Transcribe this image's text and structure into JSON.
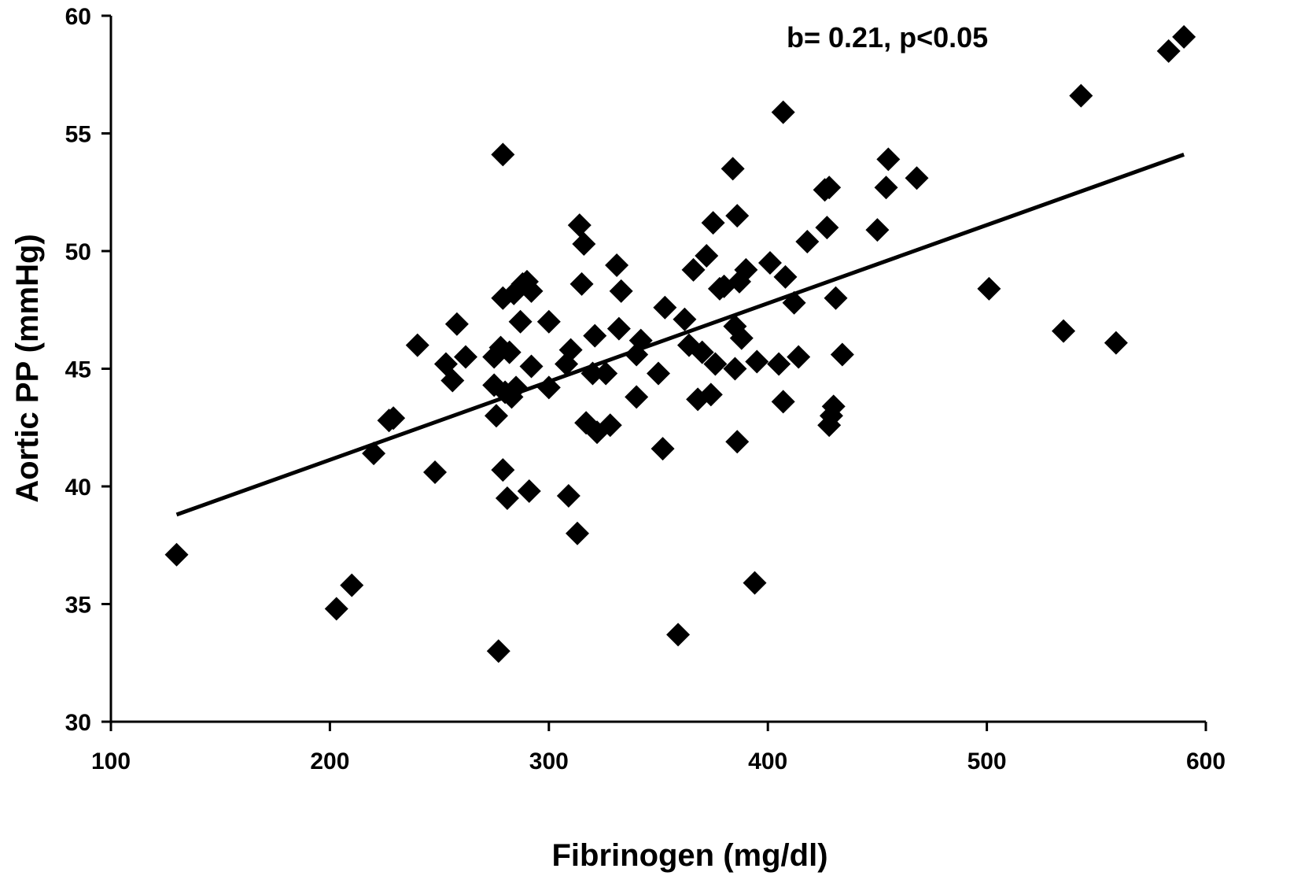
{
  "chart_data": {
    "type": "scatter",
    "title": "",
    "xlabel": "Fibrinogen (mg/dl)",
    "ylabel": "Aortic PP (mmHg)",
    "xlim": [
      100,
      600
    ],
    "ylim": [
      30,
      60
    ],
    "xticks": [
      "100",
      "200",
      "300",
      "400",
      "500",
      "600"
    ],
    "yticks": [
      "30",
      "35",
      "40",
      "45",
      "50",
      "55",
      "60"
    ],
    "annotation": "b= 0.21, p<0.05",
    "marker": "diamond",
    "marker_color": "#000000",
    "grid": false,
    "legend": "none",
    "points": [
      [
        130,
        37.1
      ],
      [
        203,
        34.8
      ],
      [
        210,
        35.8
      ],
      [
        220,
        41.4
      ],
      [
        227,
        42.8
      ],
      [
        229,
        42.9
      ],
      [
        240,
        46.0
      ],
      [
        248,
        40.6
      ],
      [
        253,
        45.2
      ],
      [
        256,
        44.5
      ],
      [
        258,
        46.9
      ],
      [
        262,
        45.5
      ],
      [
        275,
        45.5
      ],
      [
        275,
        44.3
      ],
      [
        276,
        43.0
      ],
      [
        277,
        33.0
      ],
      [
        278,
        45.9
      ],
      [
        279,
        54.1
      ],
      [
        279,
        48.0
      ],
      [
        279,
        40.7
      ],
      [
        280,
        44.0
      ],
      [
        281,
        39.5
      ],
      [
        282,
        45.7
      ],
      [
        283,
        43.8
      ],
      [
        284,
        48.2
      ],
      [
        285,
        44.2
      ],
      [
        287,
        47.0
      ],
      [
        288,
        48.6
      ],
      [
        290,
        48.7
      ],
      [
        291,
        39.8
      ],
      [
        292,
        48.3
      ],
      [
        292,
        45.1
      ],
      [
        300,
        47.0
      ],
      [
        300,
        44.2
      ],
      [
        308,
        45.2
      ],
      [
        309,
        39.6
      ],
      [
        310,
        45.8
      ],
      [
        313,
        38.0
      ],
      [
        314,
        51.1
      ],
      [
        315,
        48.6
      ],
      [
        316,
        50.3
      ],
      [
        317,
        42.7
      ],
      [
        320,
        44.8
      ],
      [
        321,
        46.4
      ],
      [
        322,
        42.3
      ],
      [
        326,
        44.8
      ],
      [
        328,
        42.6
      ],
      [
        331,
        49.4
      ],
      [
        332,
        46.7
      ],
      [
        333,
        48.3
      ],
      [
        340,
        45.6
      ],
      [
        340,
        43.8
      ],
      [
        342,
        46.2
      ],
      [
        350,
        44.8
      ],
      [
        352,
        41.6
      ],
      [
        353,
        47.6
      ],
      [
        359,
        33.7
      ],
      [
        362,
        47.1
      ],
      [
        364,
        46.0
      ],
      [
        366,
        49.2
      ],
      [
        368,
        43.7
      ],
      [
        370,
        45.7
      ],
      [
        372,
        49.8
      ],
      [
        374,
        43.9
      ],
      [
        375,
        51.2
      ],
      [
        376,
        45.2
      ],
      [
        378,
        48.4
      ],
      [
        380,
        48.5
      ],
      [
        384,
        53.5
      ],
      [
        385,
        46.8
      ],
      [
        385,
        45.0
      ],
      [
        386,
        51.5
      ],
      [
        386,
        41.9
      ],
      [
        387,
        48.7
      ],
      [
        388,
        46.3
      ],
      [
        390,
        49.2
      ],
      [
        394,
        35.9
      ],
      [
        395,
        45.3
      ],
      [
        401,
        49.5
      ],
      [
        405,
        45.2
      ],
      [
        407,
        55.9
      ],
      [
        407,
        43.6
      ],
      [
        408,
        48.9
      ],
      [
        412,
        47.8
      ],
      [
        414,
        45.5
      ],
      [
        418,
        50.4
      ],
      [
        426,
        52.6
      ],
      [
        427,
        51.0
      ],
      [
        428,
        52.7
      ],
      [
        428,
        42.6
      ],
      [
        429,
        43.0
      ],
      [
        430,
        43.4
      ],
      [
        431,
        48.0
      ],
      [
        434,
        45.6
      ],
      [
        450,
        50.9
      ],
      [
        454,
        52.7
      ],
      [
        455,
        53.9
      ],
      [
        468,
        53.1
      ],
      [
        501,
        48.4
      ],
      [
        535,
        46.6
      ],
      [
        543,
        56.6
      ],
      [
        559,
        46.1
      ],
      [
        583,
        58.5
      ],
      [
        590,
        59.1
      ]
    ],
    "trendline": {
      "x": [
        130,
        590
      ],
      "y": [
        38.8,
        54.1
      ]
    }
  }
}
